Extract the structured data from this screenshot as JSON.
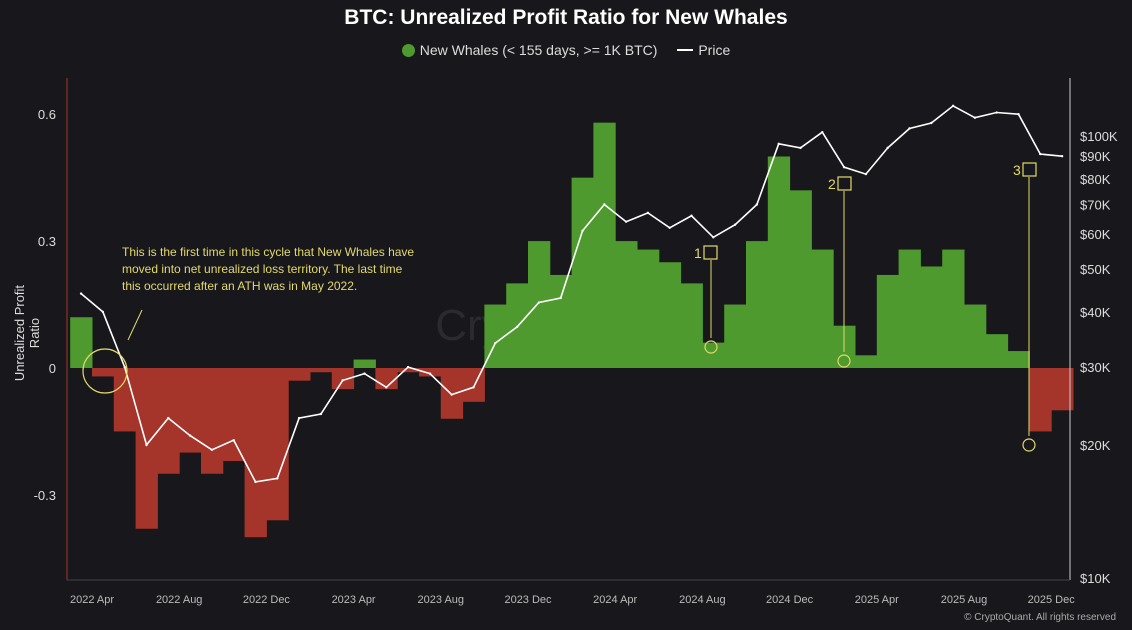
{
  "chart_data": {
    "type": "bar",
    "title": "BTC: Unrealized Profit Ratio for New Whales",
    "legend": [
      {
        "name": "New Whales (< 155 days, >= 1K BTC)",
        "color": "#4e9a2e",
        "negative_color": "#a5352b"
      },
      {
        "name": "Price",
        "color": "#ffffff"
      }
    ],
    "legend_placement": "top-center",
    "ylabel": "Unrealized Profit Ratio",
    "ylim": [
      -0.5,
      0.68
    ],
    "yticks": [
      "0.6",
      "0.3",
      "0",
      "-0.3"
    ],
    "ytick_values": [
      0.6,
      0.3,
      0,
      -0.3
    ],
    "y2_scale": "log",
    "y2lim": [
      10000,
      160000
    ],
    "y2ticks": [
      "$100K",
      "$90K",
      "$80K",
      "$70K",
      "$60K",
      "$50K",
      "$40K",
      "$30K",
      "$20K",
      "$10K"
    ],
    "y2tick_values": [
      100000,
      90000,
      80000,
      70000,
      60000,
      50000,
      40000,
      30000,
      20000,
      10000
    ],
    "xticks": [
      "2022 Apr",
      "2022 Aug",
      "2022 Dec",
      "2023 Apr",
      "2023 Aug",
      "2023 Dec",
      "2024 Apr",
      "2024 Aug",
      "2024 Dec",
      "2025 Apr",
      "2025 Aug",
      "2025 Dec"
    ],
    "x": [
      "2022-03",
      "2022-04",
      "2022-05",
      "2022-06",
      "2022-07",
      "2022-08",
      "2022-09",
      "2022-10",
      "2022-11",
      "2022-12",
      "2023-01",
      "2023-02",
      "2023-03",
      "2023-04",
      "2023-05",
      "2023-06",
      "2023-07",
      "2023-08",
      "2023-09",
      "2023-10",
      "2023-11",
      "2023-12",
      "2024-01",
      "2024-02",
      "2024-03",
      "2024-04",
      "2024-05",
      "2024-06",
      "2024-07",
      "2024-08",
      "2024-09",
      "2024-10",
      "2024-11",
      "2024-12",
      "2025-01",
      "2025-02",
      "2025-03",
      "2025-04",
      "2025-05",
      "2025-06",
      "2025-07",
      "2025-08",
      "2025-09",
      "2025-10",
      "2025-11",
      "2025-12"
    ],
    "series": [
      {
        "name": "New Whales (< 155 days, >= 1K BTC)",
        "values": [
          0.12,
          -0.02,
          -0.15,
          -0.38,
          -0.25,
          -0.2,
          -0.25,
          -0.22,
          -0.4,
          -0.36,
          -0.03,
          -0.01,
          -0.05,
          0.02,
          -0.05,
          -0.01,
          -0.02,
          -0.12,
          -0.08,
          0.15,
          0.2,
          0.3,
          0.22,
          0.45,
          0.58,
          0.3,
          0.28,
          0.25,
          0.2,
          0.06,
          0.15,
          0.3,
          0.5,
          0.42,
          0.28,
          0.1,
          0.03,
          0.22,
          0.28,
          0.24,
          0.28,
          0.15,
          0.08,
          0.04,
          -0.15,
          -0.1
        ]
      },
      {
        "name": "Price",
        "values": [
          44000,
          40000,
          30000,
          20000,
          23000,
          21000,
          19500,
          20500,
          16500,
          16800,
          23000,
          23500,
          28000,
          29000,
          27000,
          30000,
          29000,
          26000,
          27000,
          34000,
          37000,
          42000,
          43000,
          61000,
          70000,
          64000,
          67000,
          62000,
          66000,
          59000,
          63000,
          70000,
          96000,
          94000,
          102000,
          85000,
          82000,
          94000,
          104000,
          107000,
          117000,
          110000,
          113000,
          112000,
          91000,
          90000
        ]
      }
    ],
    "annotations": {
      "note": "This is the first time in this cycle that New Whales have moved into net unrealized loss territory. The last time this occurred after an ATH was in May 2022.",
      "markers": [
        "1",
        "2",
        "3"
      ]
    },
    "grid": false
  },
  "watermark": "CryptoQuant",
  "copyright": "© CryptoQuant. All rights reserved"
}
